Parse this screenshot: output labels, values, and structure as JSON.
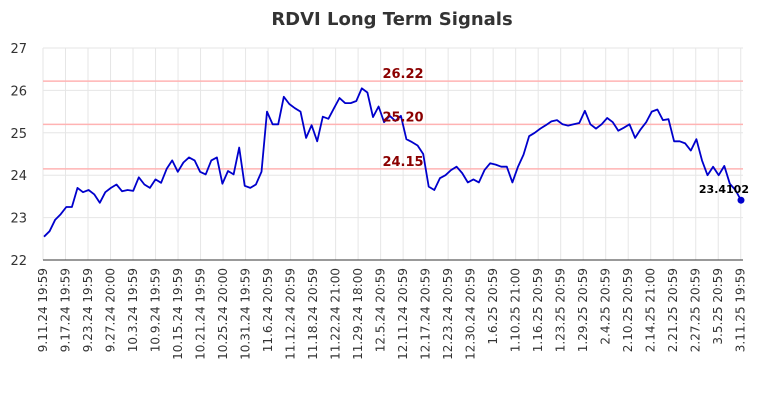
{
  "chart_data": {
    "type": "line",
    "title": "RDVI Long Term Signals",
    "xlabel": "",
    "ylabel": "",
    "ylim": [
      22,
      27
    ],
    "yticks": [
      22,
      23,
      24,
      25,
      26,
      27
    ],
    "grid": true,
    "x_tick_labels": [
      "9.11.24 19:59",
      "9.17.24 19:59",
      "9.23.24 19:59",
      "9.27.24 20:00",
      "10.3.24 19:59",
      "10.9.24 19:59",
      "10.15.24 19:59",
      "10.21.24 19:59",
      "10.25.24 20:00",
      "10.31.24 19:59",
      "11.6.24 20:59",
      "11.12.24 20:59",
      "11.18.24 20:59",
      "11.22.24 21:00",
      "11.29.24 18:00",
      "12.5.24 20:59",
      "12.11.24 20:59",
      "12.17.24 20:59",
      "12.23.24 20:59",
      "12.30.24 20:59",
      "1.6.25 20:59",
      "1.10.25 21:00",
      "1.16.25 20:59",
      "1.23.25 20:59",
      "1.29.25 20:59",
      "2.4.25 20:59",
      "2.10.25 20:59",
      "2.14.25 21:00",
      "2.21.25 20:59",
      "2.27.25 20:59",
      "3.5.25 20:59",
      "3.11.25 19:59"
    ],
    "reference_lines": [
      {
        "value": 26.22,
        "label": "26.22",
        "color": "#ffb3b3"
      },
      {
        "value": 25.2,
        "label": "25.20",
        "color": "#ffb3b3"
      },
      {
        "value": 24.15,
        "label": "24.15",
        "color": "#ffb3b3"
      }
    ],
    "series": [
      {
        "color": "#0000cc",
        "values": [
          22.55,
          22.68,
          22.95,
          23.08,
          23.25,
          23.25,
          23.7,
          23.6,
          23.65,
          23.55,
          23.35,
          23.6,
          23.7,
          23.78,
          23.62,
          23.65,
          23.63,
          23.95,
          23.78,
          23.7,
          23.9,
          23.82,
          24.15,
          24.35,
          24.08,
          24.3,
          24.42,
          24.35,
          24.08,
          24.02,
          24.35,
          24.42,
          23.8,
          24.1,
          24.02,
          24.65,
          23.75,
          23.7,
          23.78,
          24.08,
          25.5,
          25.2,
          25.2,
          25.85,
          25.68,
          25.58,
          25.5,
          24.88,
          25.18,
          24.8,
          25.38,
          25.33,
          25.58,
          25.82,
          25.7,
          25.7,
          25.75,
          26.05,
          25.95,
          25.37,
          25.62,
          25.25,
          25.4,
          25.28,
          25.4,
          24.85,
          24.78,
          24.7,
          24.5,
          23.73,
          23.65,
          23.93,
          24.0,
          24.12,
          24.2,
          24.05,
          23.83,
          23.9,
          23.83,
          24.12,
          24.28,
          24.25,
          24.2,
          24.2,
          23.83,
          24.2,
          24.48,
          24.92,
          25.0,
          25.1,
          25.18,
          25.27,
          25.3,
          25.2,
          25.17,
          25.2,
          25.23,
          25.52,
          25.2,
          25.1,
          25.2,
          25.35,
          25.25,
          25.05,
          25.12,
          25.2,
          24.88,
          25.08,
          25.25,
          25.5,
          25.55,
          25.3,
          25.32,
          24.8,
          24.8,
          24.75,
          24.58,
          24.85,
          24.35,
          24.0,
          24.2,
          24.0,
          24.22,
          23.8,
          23.65,
          23.4102
        ]
      }
    ],
    "last_value_label": "23.4102"
  }
}
